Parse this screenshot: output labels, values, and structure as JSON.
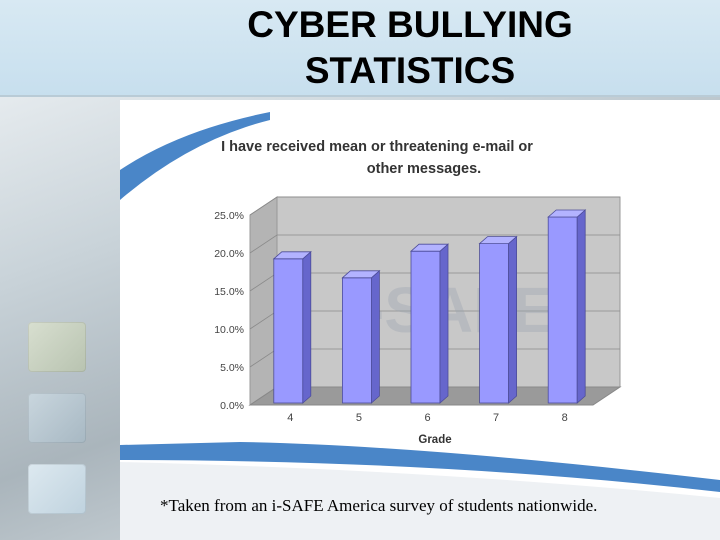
{
  "slide": {
    "title_line1": "CYBER BULLYING",
    "title_line2": "STATISTICS",
    "caption": "*Taken from an i-SAFE America survey of students nationwide.",
    "accent_color": "#4a86c8",
    "bar_color": "#9999ff"
  },
  "chart_data": {
    "type": "bar",
    "title_line1": "I have received mean or threatening e-mail or",
    "title_line2": "other messages.",
    "xlabel": "Grade",
    "ylabel": "",
    "categories": [
      "4",
      "5",
      "6",
      "7",
      "8"
    ],
    "values": [
      19.5,
      17.0,
      20.5,
      21.5,
      25.0
    ],
    "ylim": [
      0,
      25
    ],
    "yticks": [
      "0.0%",
      "5.0%",
      "10.0%",
      "15.0%",
      "20.0%",
      "25.0%"
    ],
    "grid": true,
    "style": "3d",
    "watermark": "i-SAFE"
  }
}
